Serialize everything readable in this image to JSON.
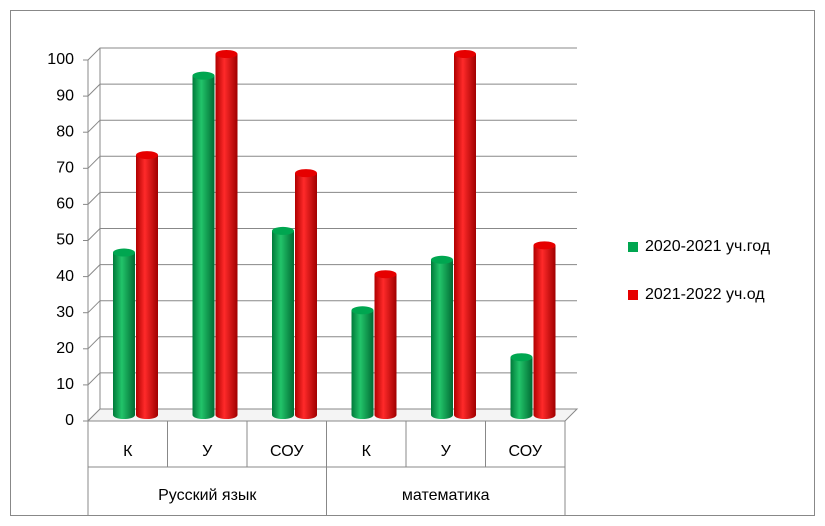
{
  "chart_data": {
    "type": "bar3d",
    "groups": [
      {
        "name": "Русский язык",
        "categories": [
          "К",
          "У",
          "СОУ"
        ]
      },
      {
        "name": "математика",
        "categories": [
          "К",
          "У",
          "СОУ"
        ]
      }
    ],
    "series": [
      {
        "name": "2020-2021 уч.год",
        "color": "#00a650",
        "values": [
          45,
          94,
          51,
          29,
          43,
          16
        ]
      },
      {
        "name": "2021-2022 уч.од",
        "color": "#e60000",
        "values": [
          72,
          100,
          67,
          39,
          100,
          47
        ]
      }
    ],
    "ylim": [
      0,
      100
    ],
    "yticks": [
      0,
      10,
      20,
      30,
      40,
      50,
      60,
      70,
      80,
      90,
      100
    ],
    "grid": true,
    "legend": "right"
  }
}
